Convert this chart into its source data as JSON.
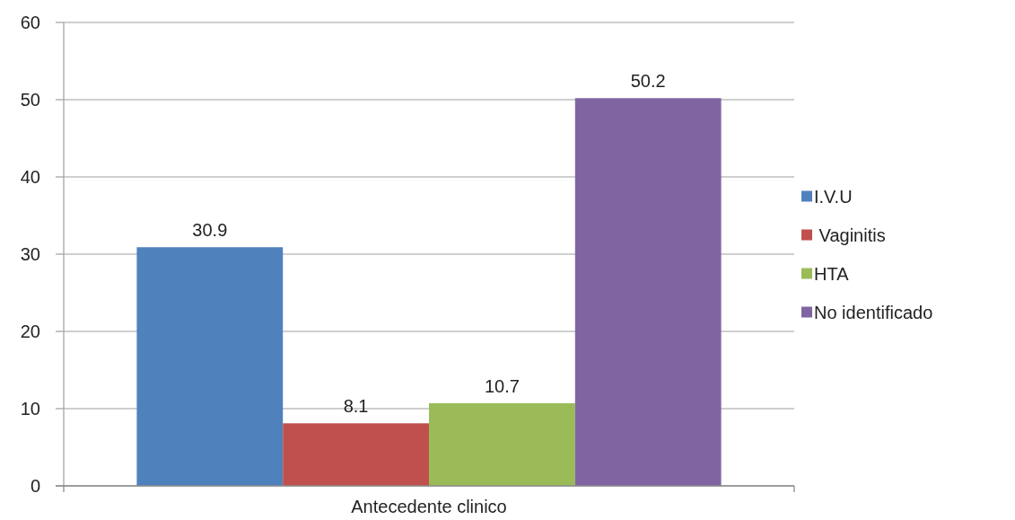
{
  "chart_data": {
    "type": "bar",
    "categories": [
      "Antecedente clinico"
    ],
    "series": [
      {
        "name": "I.V.U",
        "color": "#4f81bd",
        "values": [
          30.9
        ]
      },
      {
        "name": " Vaginitis",
        "color": "#c0504d",
        "values": [
          8.1
        ]
      },
      {
        "name": "HTA",
        "color": "#9bbb59",
        "values": [
          10.7
        ]
      },
      {
        "name": "No identificado",
        "color": "#8064a2",
        "values": [
          50.2
        ]
      }
    ],
    "ylim": [
      0,
      60
    ],
    "yticks": [
      0,
      10,
      20,
      30,
      40,
      50,
      60
    ],
    "grid": "y",
    "legend": "right",
    "data_labels": true
  }
}
